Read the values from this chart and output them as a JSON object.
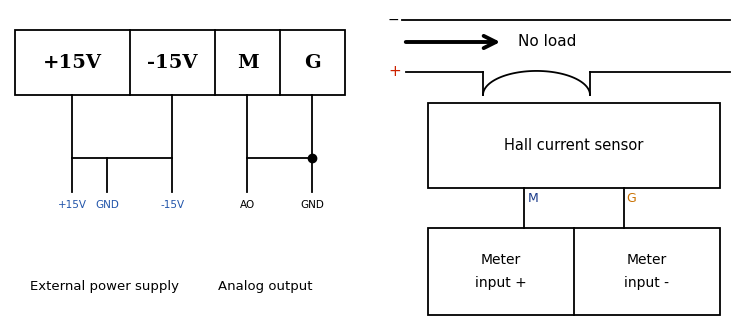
{
  "bg_color": "#ffffff",
  "line_color": "#000000",
  "plus15v_label_color": "#2255aa",
  "gnd_label_color": "#2255aa",
  "minus15v_label_color": "#2255aa",
  "ao_label_color": "#000000",
  "gnd2_label_color": "#000000",
  "M_wire_color": "#1a3a8a",
  "G_wire_color": "#c87000",
  "plus_sign_color": "#cc2200",
  "cell_labels": [
    "+15V",
    "-15V",
    "M",
    "G"
  ],
  "wire_labels": [
    "+15V",
    "GND",
    "-15V",
    "AO",
    "GND"
  ],
  "bottom_label1": "External power supply",
  "bottom_label2": "Analog output",
  "sensor_label": "Hall current sensor",
  "meter1_line1": "Meter",
  "meter1_line2": "input +",
  "meter2_line1": "Meter",
  "meter2_line2": "input -",
  "no_load_text": "No load",
  "M_label": "M",
  "G_label": "G"
}
